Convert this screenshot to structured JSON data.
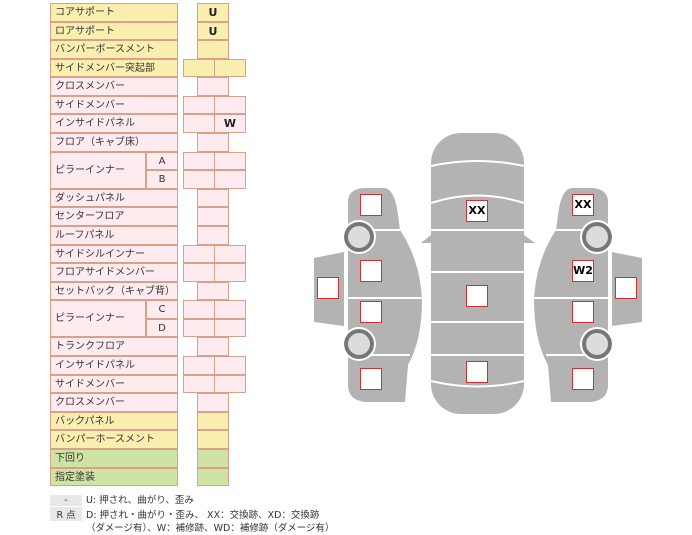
{
  "rows": [
    {
      "label": "コアサポート",
      "type": "single",
      "color": "yellow",
      "value": "U"
    },
    {
      "label": "ロアサポート",
      "type": "single",
      "color": "yellow",
      "value": "U"
    },
    {
      "label": "バンパーボースメント",
      "type": "single",
      "color": "yellow",
      "value": ""
    },
    {
      "label": "サイドメンバー突起部",
      "type": "double",
      "color": "yellow",
      "left": "",
      "right": ""
    },
    {
      "label": "クロスメンバー",
      "type": "single",
      "color": "pink",
      "value": ""
    },
    {
      "label": "サイドメンバー",
      "type": "double",
      "color": "pink",
      "left": "",
      "right": ""
    },
    {
      "label": "インサイドパネル",
      "type": "double",
      "color": "pink",
      "left": "",
      "right": "W"
    },
    {
      "label": "フロア（キャブ床）",
      "type": "single",
      "color": "pink",
      "value": ""
    },
    {
      "label": "ピラーインナー",
      "sub": "A",
      "type": "double",
      "color": "pink",
      "left": "",
      "right": "",
      "merged": true
    },
    {
      "label": "",
      "sub": "B",
      "type": "double",
      "color": "pink",
      "left": "",
      "right": "",
      "cont": true
    },
    {
      "label": "ダッシュパネル",
      "type": "single",
      "color": "pink",
      "value": ""
    },
    {
      "label": "センターフロア",
      "type": "single",
      "color": "pink",
      "value": ""
    },
    {
      "label": "ルーフパネル",
      "type": "single",
      "color": "pink",
      "value": ""
    },
    {
      "label": "サイドシルインナー",
      "type": "double",
      "color": "pink",
      "left": "",
      "right": ""
    },
    {
      "label": "フロアサイドメンバー",
      "type": "double",
      "color": "pink",
      "left": "",
      "right": ""
    },
    {
      "label": "セットバック（キャブ背）",
      "type": "single",
      "color": "pink",
      "value": ""
    },
    {
      "label": "ピラーインナー",
      "sub": "C",
      "type": "double",
      "color": "pink",
      "left": "",
      "right": "",
      "merged": true
    },
    {
      "label": "",
      "sub": "D",
      "type": "double",
      "color": "pink",
      "left": "",
      "right": "",
      "cont": true
    },
    {
      "label": "トランクフロア",
      "type": "single",
      "color": "pink",
      "value": ""
    },
    {
      "label": "インサイドパネル",
      "type": "double",
      "color": "pink",
      "left": "",
      "right": ""
    },
    {
      "label": "サイドメンバー",
      "type": "double",
      "color": "pink",
      "left": "",
      "right": ""
    },
    {
      "label": "クロスメンバー",
      "type": "single",
      "color": "pink",
      "value": ""
    },
    {
      "label": "バックパネル",
      "type": "single",
      "color": "yellow",
      "value": ""
    },
    {
      "label": "バンパーホースメント",
      "type": "single",
      "color": "yellow",
      "value": ""
    },
    {
      "label": "下回り",
      "type": "single",
      "color": "green",
      "value": ""
    },
    {
      "label": "指定塗装",
      "type": "single",
      "color": "green",
      "value": ""
    }
  ],
  "legend": {
    "key1": "-",
    "text1": "U: 押され、曲がり、歪み",
    "key2": "R 点",
    "text2": "D: 押され・曲がり・歪み、 XX：交換跡、XD：交換跡",
    "text3": "（ダメージ有）、W：補修跡、WD：補修跡（ダメージ有）"
  },
  "diagram": {
    "marks": [
      {
        "id": "center-front",
        "value": "XX"
      },
      {
        "id": "center-mid",
        "value": ""
      },
      {
        "id": "center-rear",
        "value": ""
      },
      {
        "id": "left-front-fender",
        "value": ""
      },
      {
        "id": "left-front-door",
        "value": ""
      },
      {
        "id": "left-rear-door",
        "value": ""
      },
      {
        "id": "left-rear-fender",
        "value": ""
      },
      {
        "id": "left-mirror",
        "value": ""
      },
      {
        "id": "right-front-fender",
        "value": "XX"
      },
      {
        "id": "right-front-door",
        "value": "W2"
      },
      {
        "id": "right-rear-door",
        "value": ""
      },
      {
        "id": "right-rear-fender",
        "value": ""
      },
      {
        "id": "right-mirror",
        "value": ""
      }
    ]
  },
  "colors": {
    "yellow": "#fbefb0",
    "pink": "#fdebef",
    "green": "#cfe3a4",
    "border": "#d9a08a",
    "car": "#b3b3b3",
    "mark_border": "#d03030"
  }
}
